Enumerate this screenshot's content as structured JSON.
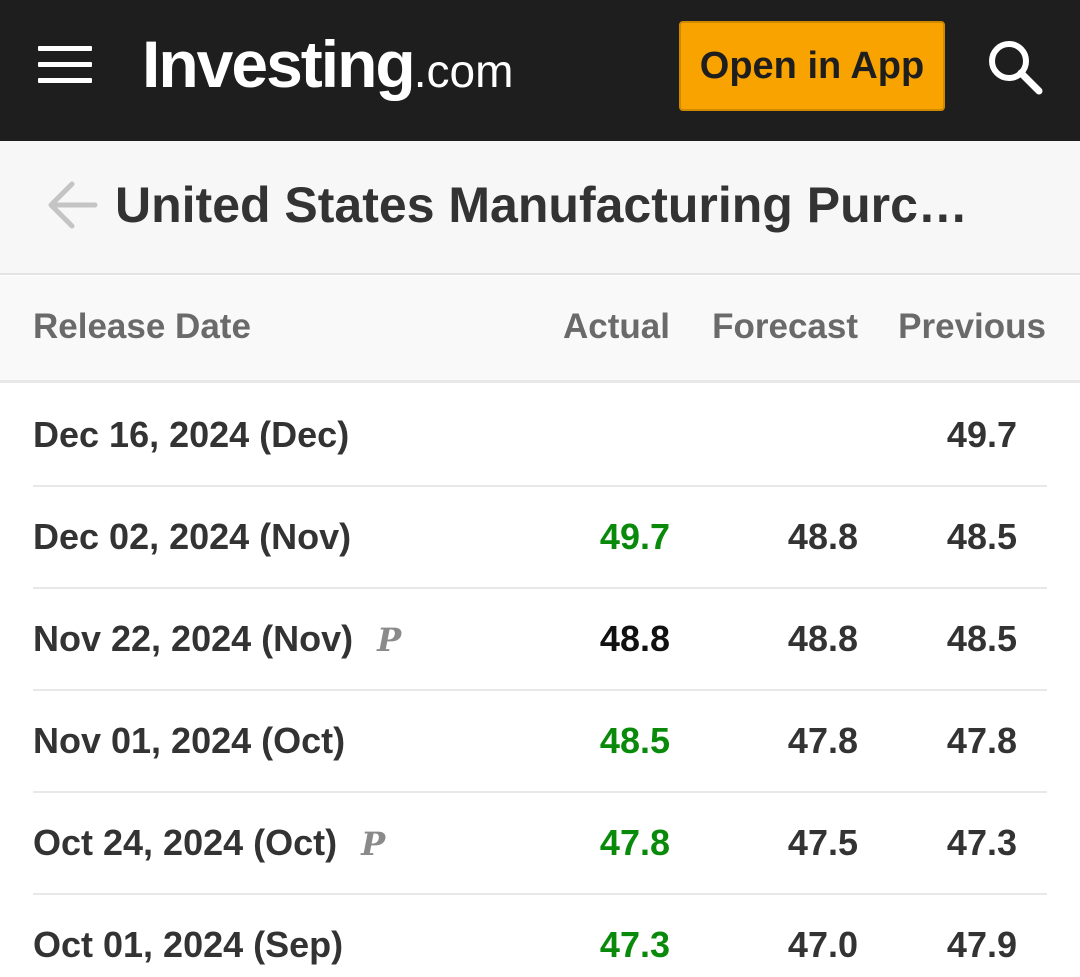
{
  "header": {
    "logo_main": "Investing",
    "logo_suffix": ".com",
    "open_app_label": "Open in App",
    "icons": {
      "menu": "hamburger-menu-icon",
      "search": "search-icon"
    }
  },
  "title_bar": {
    "title": "United States Manufacturing Purc…",
    "back_icon": "back-arrow-icon"
  },
  "table": {
    "columns": [
      "Release Date",
      "Actual",
      "Forecast",
      "Previous"
    ],
    "rows": [
      {
        "date": "Dec 16, 2024 (Dec)",
        "preliminary": "",
        "actual": "",
        "actual_status": "none",
        "forecast": "",
        "previous": "49.7"
      },
      {
        "date": "Dec 02, 2024 (Nov)",
        "preliminary": "",
        "actual": "49.7",
        "actual_status": "green",
        "forecast": "48.8",
        "previous": "48.5"
      },
      {
        "date": "Nov 22, 2024 (Nov)",
        "preliminary": "P",
        "actual": "48.8",
        "actual_status": "black",
        "forecast": "48.8",
        "previous": "48.5"
      },
      {
        "date": "Nov 01, 2024 (Oct)",
        "preliminary": "",
        "actual": "48.5",
        "actual_status": "green",
        "forecast": "47.8",
        "previous": "47.8"
      },
      {
        "date": "Oct 24, 2024 (Oct)",
        "preliminary": "P",
        "actual": "47.8",
        "actual_status": "green",
        "forecast": "47.5",
        "previous": "47.3"
      },
      {
        "date": "Oct 01, 2024 (Sep)",
        "preliminary": "",
        "actual": "47.3",
        "actual_status": "green",
        "forecast": "47.0",
        "previous": "47.9"
      }
    ]
  },
  "colors": {
    "header_bg": "#1e1e1e",
    "accent": "#f8a300",
    "positive": "#0a8a0a",
    "neutral": "#111111"
  }
}
